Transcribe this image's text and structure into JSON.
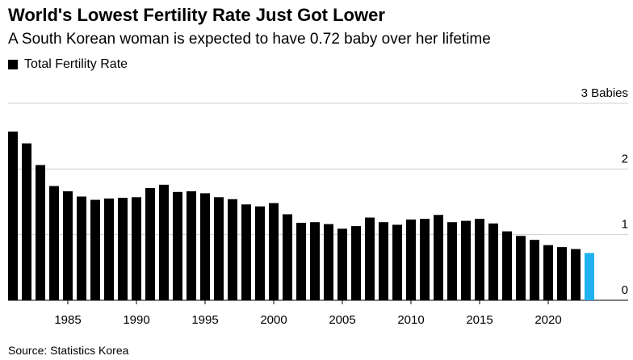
{
  "title": "World's Lowest Fertility Rate Just Got Lower",
  "subtitle": "A South Korean woman is expected to have 0.72 baby over her lifetime",
  "source": "Source: Statistics Korea",
  "chart_data": {
    "type": "bar",
    "legend": [
      "Total Fertility Rate"
    ],
    "legend_position": "top-left",
    "grid": true,
    "colors": {
      "default": "#000000",
      "highlight": "#1fb1f0"
    },
    "ylim": [
      0,
      3
    ],
    "y_ticks": [
      {
        "value": 0,
        "label": "0"
      },
      {
        "value": 1,
        "label": "1"
      },
      {
        "value": 2,
        "label": "2"
      },
      {
        "value": 3,
        "label": "3 Babies"
      }
    ],
    "x_ticks": [
      "1985",
      "1990",
      "1995",
      "2000",
      "2005",
      "2010",
      "2015",
      "2020"
    ],
    "categories": [
      1981,
      1982,
      1983,
      1984,
      1985,
      1986,
      1987,
      1988,
      1989,
      1990,
      1991,
      1992,
      1993,
      1994,
      1995,
      1996,
      1997,
      1998,
      1999,
      2000,
      2001,
      2002,
      2003,
      2004,
      2005,
      2006,
      2007,
      2008,
      2009,
      2010,
      2011,
      2012,
      2013,
      2014,
      2015,
      2016,
      2017,
      2018,
      2019,
      2020,
      2021,
      2022,
      2023
    ],
    "values": [
      2.57,
      2.39,
      2.06,
      1.74,
      1.66,
      1.58,
      1.53,
      1.55,
      1.56,
      1.57,
      1.71,
      1.76,
      1.65,
      1.66,
      1.63,
      1.57,
      1.54,
      1.46,
      1.43,
      1.48,
      1.31,
      1.18,
      1.19,
      1.16,
      1.09,
      1.13,
      1.26,
      1.19,
      1.15,
      1.23,
      1.24,
      1.3,
      1.19,
      1.21,
      1.24,
      1.17,
      1.05,
      0.98,
      0.92,
      0.84,
      0.81,
      0.78,
      0.72
    ],
    "highlight_category": 2023
  }
}
